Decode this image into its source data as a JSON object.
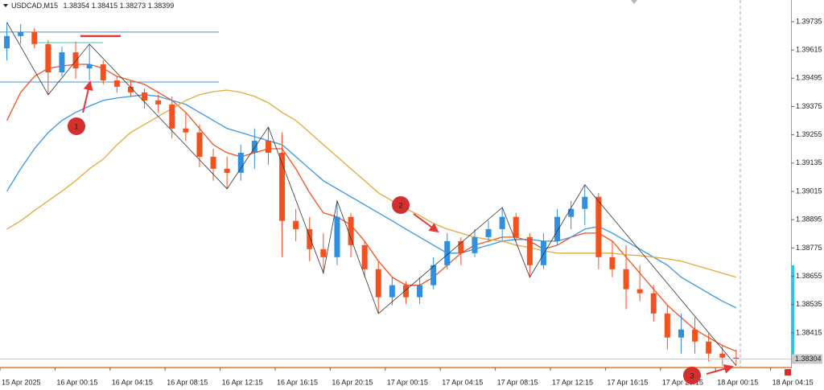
{
  "header": {
    "symbol": "USDCAD,M15",
    "ohlc": [
      1.38354,
      1.38415,
      1.38273,
      1.38399
    ]
  },
  "chart_data": {
    "type": "candlestick",
    "categories": [
      "15 Apr 2025",
      null,
      null,
      null,
      "16 Apr 00:15",
      null,
      null,
      null,
      "16 Apr 04:15",
      null,
      null,
      null,
      "16 Apr 08:15",
      null,
      null,
      null,
      "16 Apr 12:15",
      null,
      null,
      null,
      "16 Apr 16:15",
      null,
      null,
      null,
      "16 Apr 20:15",
      null,
      null,
      null,
      "17 Apr 00:15",
      null,
      null,
      null,
      "17 Apr 04:15",
      null,
      null,
      null,
      "17 Apr 08:15",
      null,
      null,
      null,
      "17 Apr 12:15",
      null,
      null,
      null,
      "17 Apr 16:15",
      null,
      null,
      null,
      "17 Apr 20:15",
      null,
      null,
      null,
      "18 Apr 00:15",
      null,
      null,
      null,
      "18 Apr 04:15"
    ],
    "open": [
      1.39622,
      1.39674,
      1.39691,
      1.3964,
      1.3952,
      1.39605,
      1.39537,
      1.39554,
      1.39486,
      1.39459,
      1.39435,
      1.39401,
      1.39384,
      1.39282,
      1.39265,
      1.39162,
      1.39111,
      1.39094,
      1.39179,
      1.3923,
      1.39179,
      1.3889,
      1.38855,
      1.3877,
      1.38736,
      1.38907,
      1.38787,
      1.38685,
      1.38566,
      1.38617,
      1.38566,
      1.38617,
      1.38702,
      1.38804,
      1.38753,
      1.38821,
      1.38855,
      1.38907,
      1.38821,
      1.38702,
      1.38804,
      1.38907,
      1.38941,
      1.38992,
      1.38736,
      1.38685,
      1.386,
      1.38583,
      1.38497,
      1.38395,
      1.38429,
      1.38378,
      1.38327,
      1.3831,
      null,
      null,
      null
    ],
    "high": [
      1.39732,
      1.39725,
      1.39708,
      1.39657,
      1.39629,
      1.3965,
      1.3964,
      1.39571,
      1.39503,
      1.39486,
      1.39452,
      1.39425,
      1.39418,
      1.3935,
      1.39299,
      1.39196,
      1.39162,
      1.39213,
      1.39282,
      1.39288,
      1.39265,
      1.38941,
      1.38907,
      1.38838,
      1.38975,
      1.38924,
      1.38804,
      1.38719,
      1.38651,
      1.38634,
      1.38651,
      1.38736,
      1.38838,
      1.38821,
      1.38855,
      1.3889,
      1.38947,
      1.38924,
      1.38838,
      1.38838,
      1.38941,
      1.38975,
      1.39043,
      1.39009,
      1.38804,
      1.38787,
      1.38702,
      1.38617,
      1.38532,
      1.38497,
      1.3848,
      1.38412,
      1.38361,
      1.38344,
      null,
      null,
      null
    ],
    "low": [
      1.39571,
      1.3964,
      1.39622,
      1.39425,
      1.39503,
      1.39493,
      1.39486,
      1.39469,
      1.39435,
      1.39418,
      1.39367,
      1.3935,
      1.39241,
      1.3923,
      1.39118,
      1.3906,
      1.39026,
      1.3906,
      1.39111,
      1.39128,
      1.38736,
      1.38804,
      1.38719,
      1.38668,
      1.38702,
      1.38736,
      1.38651,
      1.38497,
      1.38532,
      1.38538,
      1.38538,
      1.386,
      1.38685,
      1.38702,
      1.38736,
      1.38804,
      1.38804,
      1.38804,
      1.38651,
      1.38685,
      1.38787,
      1.38855,
      1.38872,
      1.38685,
      1.38651,
      1.38515,
      1.38549,
      1.38463,
      1.38344,
      1.38327,
      1.38327,
      1.38293,
      1.38276,
      1.38276,
      null,
      null,
      null
    ],
    "close": [
      1.39674,
      1.39691,
      1.3964,
      1.3952,
      1.39605,
      1.39537,
      1.39554,
      1.39486,
      1.39459,
      1.39435,
      1.39401,
      1.39384,
      1.39282,
      1.39265,
      1.39162,
      1.39111,
      1.39094,
      1.39179,
      1.3923,
      1.39179,
      1.3889,
      1.38855,
      1.3877,
      1.38736,
      1.38907,
      1.38787,
      1.38685,
      1.38566,
      1.38617,
      1.38566,
      1.38617,
      1.38702,
      1.38804,
      1.38753,
      1.38821,
      1.38855,
      1.38907,
      1.38821,
      1.38702,
      1.38804,
      1.38907,
      1.38941,
      1.38992,
      1.38736,
      1.38685,
      1.386,
      1.38583,
      1.38497,
      1.38395,
      1.38429,
      1.38378,
      1.38327,
      1.3831,
      1.38304,
      null,
      null,
      null
    ],
    "up_color": "#2f8fe0",
    "down_color": "#f4511e",
    "series": [
      {
        "color": "#f4511e",
        "values": [
          1.39316,
          1.39435,
          1.39503,
          1.39537,
          1.39547,
          1.39554,
          1.39554,
          1.39537,
          1.39503,
          1.39486,
          1.39469,
          1.39435,
          1.39401,
          1.3935,
          1.39282,
          1.39213,
          1.39179,
          1.39162,
          1.39179,
          1.39196,
          1.39196,
          1.39111,
          1.39009,
          1.38924,
          1.38907,
          1.38872,
          1.38804,
          1.38719,
          1.38651,
          1.38617,
          1.38617,
          1.38651,
          1.38702,
          1.38753,
          1.38787,
          1.38804,
          1.38821,
          1.38821,
          1.38804,
          1.3877,
          1.38787,
          1.38821,
          1.38838,
          1.38838,
          1.38804,
          1.38736,
          1.38668,
          1.386,
          1.38532,
          1.3848,
          1.38429,
          1.38395,
          1.38361,
          1.38337,
          null,
          null,
          null
        ]
      },
      {
        "color": "#3a96e6",
        "values": [
          1.39016,
          1.39111,
          1.39196,
          1.39265,
          1.39316,
          1.3935,
          1.39377,
          1.39401,
          1.39411,
          1.39418,
          1.39425,
          1.39418,
          1.39401,
          1.39384,
          1.3935,
          1.39316,
          1.39282,
          1.39265,
          1.39247,
          1.3923,
          1.39213,
          1.39162,
          1.39111,
          1.3906,
          1.39026,
          1.38992,
          1.38958,
          1.38924,
          1.3889,
          1.38855,
          1.38821,
          1.38787,
          1.38753,
          1.38753,
          1.3877,
          1.38787,
          1.38804,
          1.38811,
          1.38811,
          1.38804,
          1.38804,
          1.38821,
          1.38855,
          1.38866,
          1.38838,
          1.38804,
          1.3877,
          1.38736,
          1.38702,
          1.38651,
          1.38617,
          1.38583,
          1.38549,
          1.38521,
          null,
          null,
          null
        ]
      },
      {
        "color": "#e3a93c",
        "values": [
          1.38855,
          1.3889,
          1.38934,
          1.38975,
          1.39016,
          1.3906,
          1.39111,
          1.39152,
          1.39213,
          1.39265,
          1.39299,
          1.39333,
          1.39367,
          1.39401,
          1.39425,
          1.39438,
          1.39445,
          1.39435,
          1.39418,
          1.39391,
          1.3935,
          1.39316,
          1.39265,
          1.39213,
          1.39162,
          1.39111,
          1.3906,
          1.39009,
          1.38975,
          1.38941,
          1.38913,
          1.38879,
          1.38855,
          1.38838,
          1.38821,
          1.38811,
          1.38804,
          1.38787,
          1.38777,
          1.38763,
          1.38753,
          1.38753,
          1.38753,
          1.38753,
          1.38753,
          1.38746,
          1.38743,
          1.38736,
          1.38729,
          1.38719,
          1.38702,
          1.38685,
          1.38668,
          1.38651,
          null,
          null,
          null
        ]
      }
    ],
    "zigzag": {
      "color": "#333333",
      "x": [
        0,
        3,
        6,
        16,
        19,
        23,
        24,
        27,
        36,
        38,
        42,
        53
      ],
      "values": [
        1.39732,
        1.39425,
        1.3964,
        1.39026,
        1.39288,
        1.38668,
        1.38975,
        1.38497,
        1.38947,
        1.38651,
        1.39043,
        1.38276
      ]
    },
    "hlines": [
      {
        "value": 1.39691,
        "color": "#3a96e6"
      },
      {
        "value": 1.39479,
        "color": "#3a96e6"
      },
      {
        "value": 1.39646,
        "color": "#3fc9b0"
      },
      {
        "value": 1.39674,
        "color": "#e53935"
      },
      {
        "value": 1.3827,
        "color": "#f0a060"
      }
    ],
    "last_price": 1.38304,
    "ylim": [
      1.38268,
      1.39827
    ],
    "yticks": [
      1.39735,
      1.39615,
      1.39495,
      1.39375,
      1.39255,
      1.39135,
      1.39015,
      1.38895,
      1.38775,
      1.38655,
      1.38535,
      1.38415
    ],
    "annotations": [
      1,
      2,
      3
    ]
  }
}
